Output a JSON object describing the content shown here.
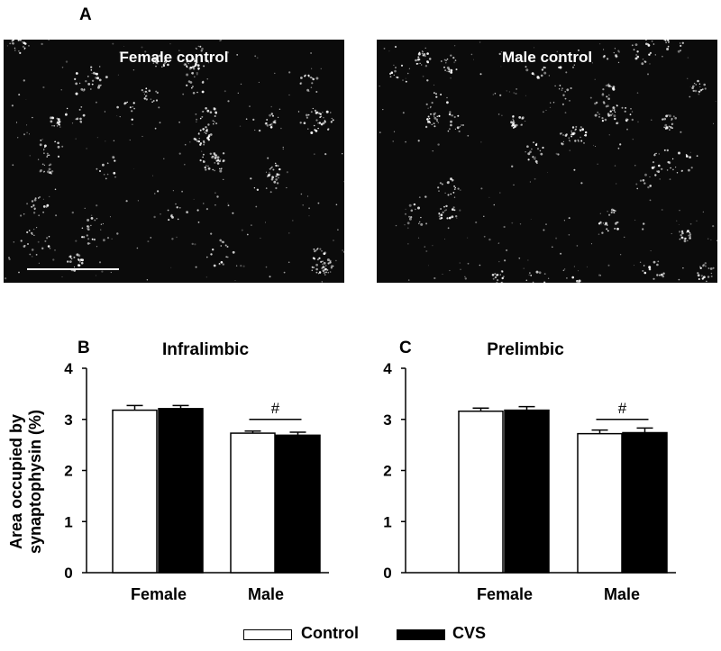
{
  "panels": {
    "a_letter": "A",
    "b_letter": "B",
    "c_letter": "C"
  },
  "micrographs": [
    {
      "label": "Female control"
    },
    {
      "label": "Male control"
    }
  ],
  "legend": {
    "control": "Control",
    "cvs": "CVS"
  },
  "colors": {
    "control_fill": "#ffffff",
    "cvs_fill": "#000000",
    "axis": "#000000",
    "micrograph_bg": "#0b0b0b",
    "puncta": "#ffffff"
  },
  "chart_data": [
    {
      "type": "bar",
      "title": "Infralimbic",
      "ylabel": "Area occupied by synaptophysin (%)",
      "categories": [
        "Female",
        "Male"
      ],
      "ylim": [
        0,
        4
      ],
      "yticks": [
        0,
        1,
        2,
        3,
        4
      ],
      "series": [
        {
          "name": "Control",
          "values": [
            3.18,
            2.73
          ],
          "errors": [
            0.09,
            0.04
          ]
        },
        {
          "name": "CVS",
          "values": [
            3.21,
            2.69
          ],
          "errors": [
            0.06,
            0.06
          ]
        }
      ],
      "annotations": [
        {
          "text": "#",
          "category": "Male"
        }
      ]
    },
    {
      "type": "bar",
      "title": "Prelimbic",
      "ylabel": "",
      "categories": [
        "Female",
        "Male"
      ],
      "ylim": [
        0,
        4
      ],
      "yticks": [
        0,
        1,
        2,
        3,
        4
      ],
      "series": [
        {
          "name": "Control",
          "values": [
            3.16,
            2.72
          ],
          "errors": [
            0.06,
            0.07
          ]
        },
        {
          "name": "CVS",
          "values": [
            3.18,
            2.74
          ],
          "errors": [
            0.07,
            0.09
          ]
        }
      ],
      "annotations": [
        {
          "text": "#",
          "category": "Male"
        }
      ]
    }
  ]
}
